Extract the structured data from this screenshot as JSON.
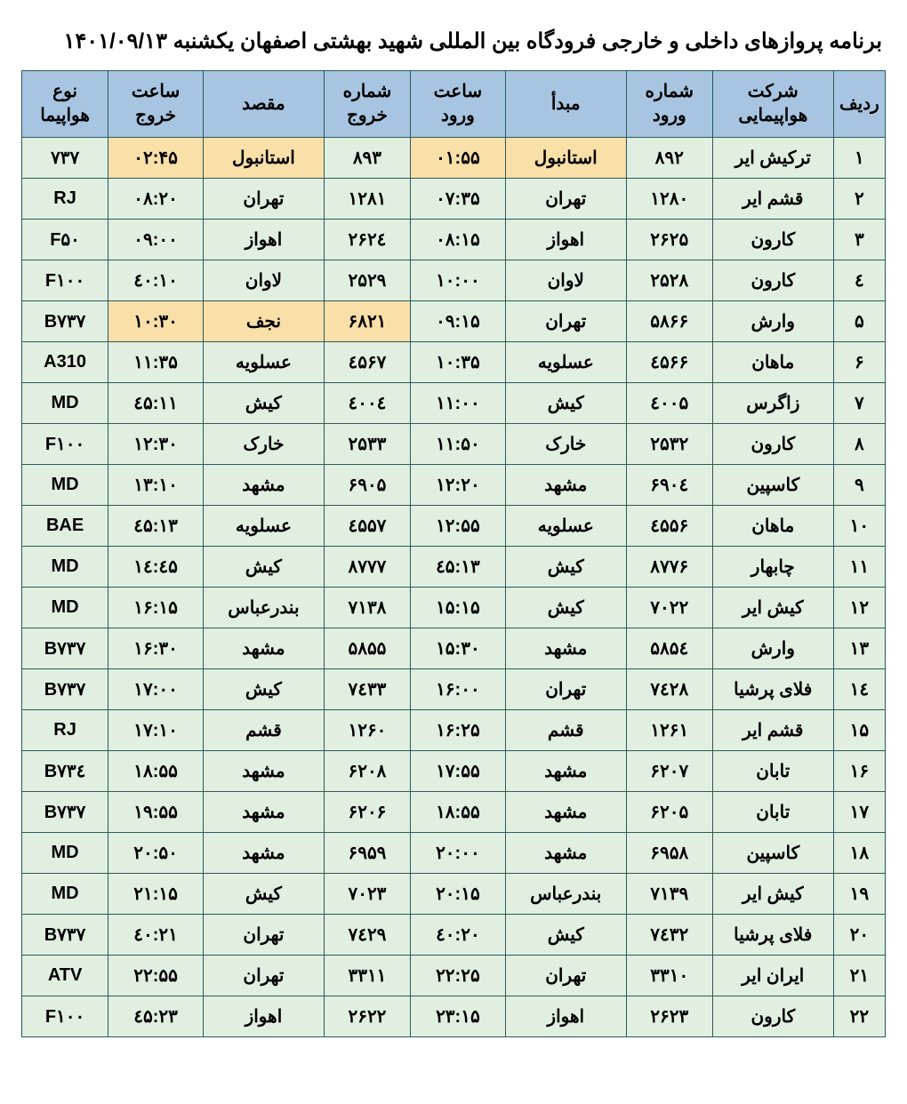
{
  "title": "برنامه پروازهای داخلی و خارجی فرودگاه بین المللی شهید بهشتی اصفهان  یکشنبه ۱۴۰۱/۰۹/۱۳",
  "colors": {
    "header_bg": "#a7c5e0",
    "row_bg": "#e1efe0",
    "highlight_bg": "#f9dfa8",
    "border": "#2b5a5a",
    "text": "#000000",
    "page_bg": "#ffffff"
  },
  "columns": [
    {
      "key": "row",
      "label": "ردیف"
    },
    {
      "key": "airline",
      "label": "شرکت هواپیمایی"
    },
    {
      "key": "arrival_num",
      "label": "شماره ورود"
    },
    {
      "key": "origin",
      "label": "مبدأ"
    },
    {
      "key": "arrival_time",
      "label": "ساعت ورود"
    },
    {
      "key": "departure_num",
      "label": "شماره خروج"
    },
    {
      "key": "destination",
      "label": "مقصد"
    },
    {
      "key": "departure_time",
      "label": "ساعت خروج"
    },
    {
      "key": "aircraft",
      "label": "نوع هواپیما"
    }
  ],
  "rows": [
    {
      "row": "۱",
      "airline": "ترکیش ایر",
      "arrival_num": "۸۹۲",
      "origin": "استانبول",
      "arrival_time": "۰۱:۵۵",
      "departure_num": "۸۹۳",
      "destination": "استانبول",
      "departure_time": "۰۲:۴۵",
      "aircraft": "۷۳۷",
      "hl": {
        "origin": true,
        "arrival_time": true,
        "destination": true,
        "departure_time": true
      }
    },
    {
      "row": "۲",
      "airline": "قشم ایر",
      "arrival_num": "۱۲۸۰",
      "origin": "تهران",
      "arrival_time": "۰۷:۳۵",
      "departure_num": "۱۲۸۱",
      "destination": "تهران",
      "departure_time": "۰۸:۲۰",
      "aircraft": "RJ"
    },
    {
      "row": "۳",
      "airline": "کارون",
      "arrival_num": "۲۶۲۵",
      "origin": "اهواز",
      "arrival_time": "۰۸:۱۵",
      "departure_num": "۲۶۲٤",
      "destination": "اهواز",
      "departure_time": "۰۹:۰۰",
      "aircraft": "F۵۰"
    },
    {
      "row": "٤",
      "airline": "کارون",
      "arrival_num": "۲۵۲۸",
      "origin": "لاوان",
      "arrival_time": "۱۰:۰۰",
      "departure_num": "۲۵۲۹",
      "destination": "لاوان",
      "departure_time": "۱۰:٤۰",
      "aircraft": "F۱۰۰"
    },
    {
      "row": "۵",
      "airline": "وارش",
      "arrival_num": "۵۸۶۶",
      "origin": "تهران",
      "arrival_time": "۰۹:۱۵",
      "departure_num": "۶۸۲۱",
      "destination": "نجف",
      "departure_time": "۱۰:۳۰",
      "aircraft": "B۷۳۷",
      "hl": {
        "departure_num": true,
        "destination": true,
        "departure_time": true
      }
    },
    {
      "row": "۶",
      "airline": "ماهان",
      "arrival_num": "٤۵۶۶",
      "origin": "عسلویه",
      "arrival_time": "۱۰:۳۵",
      "departure_num": "٤۵۶۷",
      "destination": "عسلویه",
      "departure_time": "۱۱:۳۵",
      "aircraft": "A310"
    },
    {
      "row": "۷",
      "airline": "زاگرس",
      "arrival_num": "٤۰۰۵",
      "origin": "کیش",
      "arrival_time": "۱۱:۰۰",
      "departure_num": "٤۰۰٤",
      "destination": "کیش",
      "departure_time": "۱۱:٤۵",
      "aircraft": "MD"
    },
    {
      "row": "۸",
      "airline": "کارون",
      "arrival_num": "۲۵۳۲",
      "origin": "خارک",
      "arrival_time": "۱۱:۵۰",
      "departure_num": "۲۵۳۳",
      "destination": "خارک",
      "departure_time": "۱۲:۳۰",
      "aircraft": "F۱۰۰"
    },
    {
      "row": "۹",
      "airline": "کاسپین",
      "arrival_num": "۶۹۰٤",
      "origin": "مشهد",
      "arrival_time": "۱۲:۲۰",
      "departure_num": "۶۹۰۵",
      "destination": "مشهد",
      "departure_time": "۱۳:۱۰",
      "aircraft": "MD"
    },
    {
      "row": "۱۰",
      "airline": "ماهان",
      "arrival_num": "٤۵۵۶",
      "origin": "عسلویه",
      "arrival_time": "۱۲:۵۵",
      "departure_num": "٤۵۵۷",
      "destination": "عسلویه",
      "departure_time": "۱۳:٤۵",
      "aircraft": "BAE"
    },
    {
      "row": "۱۱",
      "airline": "چابهار",
      "arrival_num": "۸۷۷۶",
      "origin": "کیش",
      "arrival_time": "۱۳:٤۵",
      "departure_num": "۸۷۷۷",
      "destination": "کیش",
      "departure_time": "۱٤:٤۵",
      "aircraft": "MD"
    },
    {
      "row": "۱۲",
      "airline": "کیش ایر",
      "arrival_num": "۷۰۲۲",
      "origin": "کیش",
      "arrival_time": "۱۵:۱۵",
      "departure_num": "۷۱۳۸",
      "destination": "بندرعباس",
      "departure_time": "۱۶:۱۵",
      "aircraft": "MD"
    },
    {
      "row": "۱۳",
      "airline": "وارش",
      "arrival_num": "۵۸۵٤",
      "origin": "مشهد",
      "arrival_time": "۱۵:۳۰",
      "departure_num": "۵۸۵۵",
      "destination": "مشهد",
      "departure_time": "۱۶:۳۰",
      "aircraft": "B۷۳۷"
    },
    {
      "row": "۱٤",
      "airline": "فلای پرشیا",
      "arrival_num": "۷٤۲۸",
      "origin": "تهران",
      "arrival_time": "۱۶:۰۰",
      "departure_num": "۷٤۳۳",
      "destination": "کیش",
      "departure_time": "۱۷:۰۰",
      "aircraft": "B۷۳۷"
    },
    {
      "row": "۱۵",
      "airline": "قشم ایر",
      "arrival_num": "۱۲۶۱",
      "origin": "قشم",
      "arrival_time": "۱۶:۲۵",
      "departure_num": "۱۲۶۰",
      "destination": "قشم",
      "departure_time": "۱۷:۱۰",
      "aircraft": "RJ"
    },
    {
      "row": "۱۶",
      "airline": "تابان",
      "arrival_num": "۶۲۰۷",
      "origin": "مشهد",
      "arrival_time": "۱۷:۵۵",
      "departure_num": "۶۲۰۸",
      "destination": "مشهد",
      "departure_time": "۱۸:۵۵",
      "aircraft": "B۷۳٤"
    },
    {
      "row": "۱۷",
      "airline": "تابان",
      "arrival_num": "۶۲۰۵",
      "origin": "مشهد",
      "arrival_time": "۱۸:۵۵",
      "departure_num": "۶۲۰۶",
      "destination": "مشهد",
      "departure_time": "۱۹:۵۵",
      "aircraft": "B۷۳۷"
    },
    {
      "row": "۱۸",
      "airline": "کاسپین",
      "arrival_num": "۶۹۵۸",
      "origin": "مشهد",
      "arrival_time": "۲۰:۰۰",
      "departure_num": "۶۹۵۹",
      "destination": "مشهد",
      "departure_time": "۲۰:۵۰",
      "aircraft": "MD"
    },
    {
      "row": "۱۹",
      "airline": "کیش ایر",
      "arrival_num": "۷۱۳۹",
      "origin": "بندرعباس",
      "arrival_time": "۲۰:۱۵",
      "departure_num": "۷۰۲۳",
      "destination": "کیش",
      "departure_time": "۲۱:۱۵",
      "aircraft": "MD"
    },
    {
      "row": "۲۰",
      "airline": "فلای پرشیا",
      "arrival_num": "۷٤۳۲",
      "origin": "کیش",
      "arrival_time": "۲۰:٤۰",
      "departure_num": "۷٤۲۹",
      "destination": "تهران",
      "departure_time": "۲۱:٤۰",
      "aircraft": "B۷۳۷"
    },
    {
      "row": "۲۱",
      "airline": "ایران ایر",
      "arrival_num": "۳۳۱۰",
      "origin": "تهران",
      "arrival_time": "۲۲:۲۵",
      "departure_num": "۳۳۱۱",
      "destination": "تهران",
      "departure_time": "۲۲:۵۵",
      "aircraft": "ATV"
    },
    {
      "row": "۲۲",
      "airline": "کارون",
      "arrival_num": "۲۶۲۳",
      "origin": "اهواز",
      "arrival_time": "۲۳:۱۵",
      "departure_num": "۲۶۲۲",
      "destination": "اهواز",
      "departure_time": "۲۳:٤۵",
      "aircraft": "F۱۰۰"
    }
  ]
}
